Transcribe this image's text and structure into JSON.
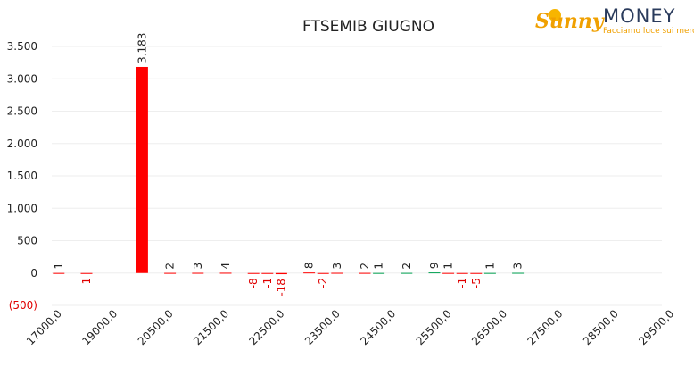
{
  "chart_data": {
    "type": "bar",
    "title": "FTSEMIB GIUGNO",
    "categories": [
      "17000,0",
      null,
      null,
      null,
      "19000,0",
      null,
      null,
      null,
      "20500,0",
      null,
      null,
      null,
      "21500,0",
      null,
      null,
      null,
      "22500,0",
      null,
      null,
      null,
      "23500,0",
      null,
      null,
      null,
      "24500,0",
      null,
      null,
      null,
      "25500,0",
      null,
      null,
      null,
      "26500,0",
      null,
      null,
      null,
      "27500,0",
      null,
      null,
      null,
      "28500,0",
      null,
      null,
      null,
      "29500,0"
    ],
    "series": [
      {
        "name": "red",
        "color": "#ff0000",
        "values": [
          1,
          null,
          -1,
          null,
          null,
          null,
          3183,
          null,
          2,
          null,
          3,
          null,
          4,
          null,
          -8,
          -1,
          -18,
          null,
          8,
          -2,
          3,
          null,
          2,
          null,
          null,
          null,
          null,
          null,
          1,
          -1,
          -5,
          null,
          null,
          null,
          null,
          null,
          null,
          null,
          null,
          null,
          null,
          null,
          null,
          null,
          null
        ],
        "value_labels": [
          "1",
          null,
          "-1",
          null,
          null,
          null,
          "3.183",
          null,
          "2",
          null,
          "3",
          null,
          "4",
          null,
          "-8",
          "-1",
          "-18",
          null,
          "8",
          "-2",
          "3",
          null,
          "2",
          null,
          null,
          null,
          null,
          null,
          "1",
          "-1",
          "-5",
          null,
          null,
          null,
          null,
          null,
          null,
          null,
          null,
          null,
          null,
          null,
          null,
          null,
          null
        ]
      },
      {
        "name": "green",
        "color": "#00a050",
        "values": [
          null,
          null,
          null,
          null,
          null,
          null,
          null,
          null,
          null,
          null,
          null,
          null,
          null,
          null,
          null,
          null,
          null,
          null,
          null,
          null,
          null,
          null,
          null,
          1,
          null,
          2,
          null,
          9,
          null,
          null,
          null,
          1,
          null,
          3,
          null,
          null,
          null,
          null,
          null,
          null,
          null,
          null,
          null,
          null,
          null
        ]
      }
    ],
    "ylim": [
      -500,
      3500
    ],
    "yticks": [
      {
        "value": -500,
        "label": "(500)"
      },
      0,
      500,
      {
        "value": 1000,
        "label": "1.000"
      },
      {
        "value": 1500,
        "label": "1.500"
      },
      {
        "value": 2000,
        "label": "2.000"
      },
      {
        "value": 2500,
        "label": "2.500"
      },
      {
        "value": 3000,
        "label": "3.000"
      },
      {
        "value": 3500,
        "label": "3.500"
      }
    ],
    "grid": true,
    "negative_color": "#e00000"
  },
  "logo": {
    "brand": "Sunny",
    "name": "MONEY",
    "tagline": "Facciamo luce sui mercati"
  }
}
